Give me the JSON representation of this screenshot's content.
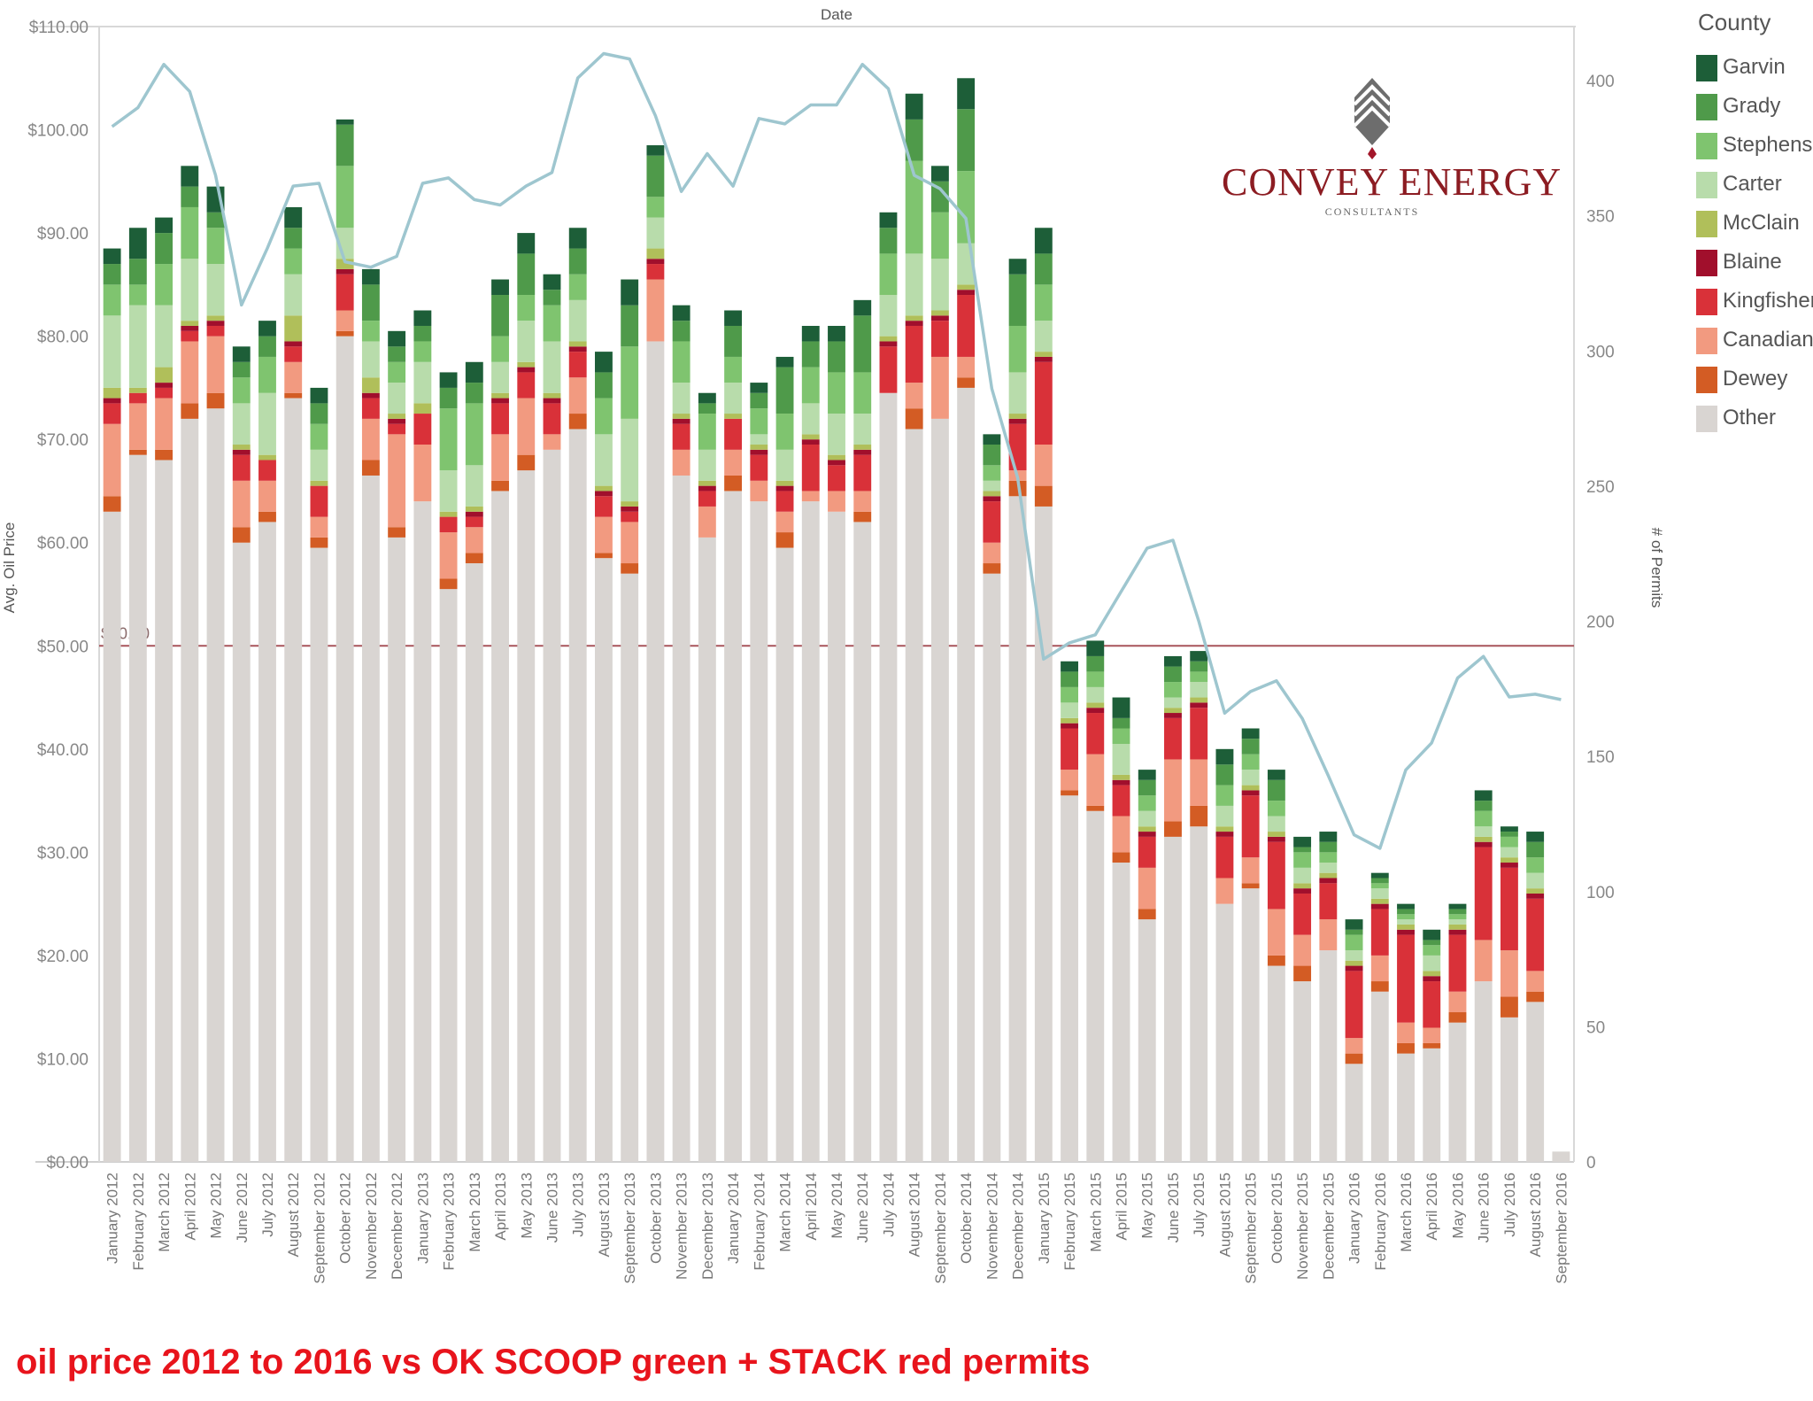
{
  "caption": "oil price 2012 to 2016 vs OK SCOOP green + STACK red permits",
  "logo": {
    "name": "CONVEY ENERGY",
    "sub": "CONSULTANTS"
  },
  "chart_data": {
    "type": "bar",
    "title": "",
    "top_axis_title": "Date",
    "ylabel_left": "Avg. Oil Price",
    "ylabel_right": "# of Permits",
    "ylim_left": [
      0,
      110
    ],
    "ylim_right": [
      0,
      420
    ],
    "left_ticks": [
      "$0.00",
      "$10.00",
      "$20.00",
      "$30.00",
      "$40.00",
      "$50.00",
      "$60.00",
      "$70.00",
      "$80.00",
      "$90.00",
      "$100.00",
      "$110.00"
    ],
    "right_ticks": [
      0,
      50,
      100,
      150,
      200,
      250,
      300,
      350,
      400
    ],
    "reference_line": {
      "value": 50,
      "label": "$50.00"
    },
    "legend_title": "County",
    "legend": [
      {
        "name": "Garvin",
        "color": "#1d5e38"
      },
      {
        "name": "Grady",
        "color": "#4f9a4a"
      },
      {
        "name": "Stephens",
        "color": "#7fc46f"
      },
      {
        "name": "Carter",
        "color": "#b8dcab"
      },
      {
        "name": "McClain",
        "color": "#b0bf5a"
      },
      {
        "name": "Blaine",
        "color": "#a10f2c"
      },
      {
        "name": "Kingfisher",
        "color": "#d93139"
      },
      {
        "name": "Canadian",
        "color": "#f29a80"
      },
      {
        "name": "Dewey",
        "color": "#d35c24"
      },
      {
        "name": "Other",
        "color": "#d9d5d2"
      }
    ],
    "categories": [
      "January 2012",
      "February 2012",
      "March 2012",
      "April 2012",
      "May 2012",
      "June 2012",
      "July 2012",
      "August 2012",
      "September 2012",
      "October 2012",
      "November 2012",
      "December 2012",
      "January 2013",
      "February 2013",
      "March 2013",
      "April 2013",
      "May 2013",
      "June 2013",
      "July 2013",
      "August 2013",
      "September 2013",
      "October 2013",
      "November 2013",
      "December 2013",
      "January 2014",
      "February 2014",
      "March 2014",
      "April 2014",
      "May 2014",
      "June 2014",
      "July 2014",
      "August 2014",
      "September 2014",
      "October 2014",
      "November 2014",
      "December 2014",
      "January 2015",
      "February 2015",
      "March 2015",
      "April 2015",
      "May 2015",
      "June 2015",
      "July 2015",
      "August 2015",
      "September 2015",
      "October 2015",
      "November 2015",
      "December 2015",
      "January 2016",
      "February 2016",
      "March 2016",
      "April 2016",
      "May 2016",
      "June 2016",
      "July 2016",
      "August 2016",
      "September 2016"
    ],
    "oil_price": [
      88,
      89.5,
      92.5,
      97,
      93.5,
      80.5,
      82.5,
      92.5,
      75.5,
      102,
      88.5,
      80.5,
      82.5,
      76.5,
      77.5,
      86,
      90.5,
      86.5,
      90.5,
      79,
      85.5,
      100.5,
      83.5,
      77.5,
      83.5,
      75.5,
      78.5,
      82,
      82,
      84.5,
      93.5,
      107.5,
      97.5,
      105.5,
      71.5,
      89,
      91.5,
      49,
      50.5,
      44.5,
      38.5,
      49,
      54.5,
      41,
      42,
      38.5,
      32,
      31.5,
      24,
      27,
      25,
      22.5,
      25,
      36,
      32,
      34.5,
      1
    ],
    "series": [
      {
        "name": "Other",
        "values": [
          63,
          68.5,
          68,
          72,
          73,
          60,
          62,
          74,
          59.5,
          80,
          66.5,
          60.5,
          64,
          55.5,
          58,
          65,
          67,
          69,
          71,
          58.5,
          57,
          79.5,
          66.5,
          60.5,
          65,
          64,
          59.5,
          64,
          63,
          62,
          74.5,
          71,
          72,
          75,
          57,
          64.5,
          63.5,
          35.5,
          34,
          29,
          23.5,
          31.5,
          32.5,
          25,
          26.5,
          19,
          17.5,
          20.5,
          9.5,
          16.5,
          10.5,
          11,
          13.5,
          17.5,
          14,
          15.5,
          1
        ]
      },
      {
        "name": "Dewey",
        "values": [
          1.5,
          0.5,
          1,
          1.5,
          1.5,
          1.5,
          1,
          0.5,
          1,
          0.5,
          1.5,
          1,
          0,
          1,
          1,
          1,
          1.5,
          0,
          1.5,
          0.5,
          1,
          0,
          0,
          0,
          1.5,
          0,
          1.5,
          0,
          0,
          1,
          0,
          2,
          0,
          1,
          1,
          1.5,
          2,
          0.5,
          0.5,
          1,
          1,
          1.5,
          2,
          0,
          0.5,
          1,
          1.5,
          0,
          1,
          1,
          1,
          0.5,
          1,
          0,
          2,
          1,
          0
        ]
      },
      {
        "name": "Canadian",
        "values": [
          7,
          4.5,
          5,
          6,
          5.5,
          4.5,
          3,
          3,
          2,
          2,
          4,
          9,
          5.5,
          4.5,
          2.5,
          4.5,
          5.5,
          1.5,
          3.5,
          3.5,
          4,
          6,
          2.5,
          3,
          2.5,
          2,
          2,
          1,
          2,
          2,
          0,
          2.5,
          6,
          2,
          2,
          1,
          4,
          2,
          5,
          3.5,
          4,
          6,
          4.5,
          2.5,
          2.5,
          4.5,
          3,
          3,
          1.5,
          2.5,
          2,
          1.5,
          2,
          4,
          4.5,
          2,
          0
        ]
      },
      {
        "name": "Kingfisher",
        "values": [
          2,
          1,
          1,
          1,
          1,
          2.5,
          2,
          1.5,
          3,
          3.5,
          2,
          1,
          3,
          1.5,
          1,
          3,
          2.5,
          3,
          2.5,
          2,
          1,
          1.5,
          2.5,
          1.5,
          3,
          2.5,
          2,
          4.5,
          2.5,
          3.5,
          4.5,
          5.5,
          3.5,
          6,
          4,
          4.5,
          8,
          4,
          4,
          3,
          3,
          4,
          5,
          4,
          6,
          6.5,
          4,
          3.5,
          6.5,
          4.5,
          8.5,
          4.5,
          5.5,
          9,
          8,
          7,
          0
        ]
      },
      {
        "name": "Blaine",
        "values": [
          0.5,
          0,
          0.5,
          0.5,
          0.5,
          0.5,
          0,
          0.5,
          0,
          0.5,
          0.5,
          0.5,
          0,
          0,
          0.5,
          0.5,
          0.5,
          0.5,
          0.5,
          0.5,
          0.5,
          0.5,
          0.5,
          0.5,
          0,
          0.5,
          0.5,
          0.5,
          0.5,
          0.5,
          0.5,
          0.5,
          0.5,
          0.5,
          0.5,
          0.5,
          0.5,
          0.5,
          0.5,
          0.5,
          0.5,
          0.5,
          0.5,
          0.5,
          0.5,
          0.5,
          0.5,
          0.5,
          0.5,
          0.5,
          0.5,
          0.5,
          0.5,
          0.5,
          0.5,
          0.5,
          0
        ]
      },
      {
        "name": "McClain",
        "values": [
          1,
          0.5,
          1.5,
          0.5,
          0.5,
          0.5,
          0.5,
          2.5,
          0.5,
          1,
          1.5,
          0.5,
          1,
          0.5,
          0.5,
          0.5,
          0.5,
          0.5,
          0.5,
          0.5,
          0.5,
          1,
          0.5,
          0.5,
          0.5,
          0.5,
          0.5,
          0.5,
          0.5,
          0.5,
          0.5,
          0.5,
          0.5,
          0.5,
          0.5,
          0.5,
          0.5,
          0.5,
          0.5,
          0.5,
          0.5,
          0.5,
          0.5,
          0.5,
          0.5,
          0.5,
          0.5,
          0.5,
          0.5,
          0.5,
          0.5,
          0.5,
          0.5,
          0.5,
          0.5,
          0.5,
          0
        ]
      },
      {
        "name": "Carter",
        "values": [
          7,
          8,
          6,
          6,
          5,
          4,
          6,
          4,
          3,
          3,
          3.5,
          3,
          4,
          4,
          4,
          3,
          4,
          5,
          4,
          5,
          8,
          3,
          3,
          3,
          3,
          1,
          3,
          3,
          4,
          3,
          4,
          6,
          5,
          4,
          1,
          4,
          3,
          1.5,
          1.5,
          3,
          1.5,
          1,
          1.5,
          2,
          1.5,
          1.5,
          1.5,
          1,
          1,
          1,
          0.5,
          1.5,
          0.5,
          1,
          1,
          1.5,
          0
        ]
      },
      {
        "name": "Stephens",
        "values": [
          3,
          2,
          4,
          5,
          3.5,
          2.5,
          3.5,
          2.5,
          2.5,
          6,
          2,
          2,
          2,
          6,
          6,
          2.5,
          2.5,
          3.5,
          2.5,
          3.5,
          7,
          2,
          4,
          3.5,
          2.5,
          2.5,
          3.5,
          3.5,
          4,
          4,
          4,
          9,
          4.5,
          7,
          1.5,
          4.5,
          3.5,
          1.5,
          1.5,
          1.5,
          1.5,
          1.5,
          1,
          2,
          1.5,
          1.5,
          1.5,
          1,
          1.5,
          0.5,
          0.5,
          1,
          0.5,
          1.5,
          1,
          1.5,
          0
        ]
      },
      {
        "name": "Grady",
        "values": [
          2,
          2.5,
          3,
          2,
          1.5,
          1.5,
          2,
          2,
          2,
          4,
          3.5,
          1.5,
          1.5,
          2,
          2,
          4,
          4,
          1.5,
          2.5,
          2.5,
          4,
          4,
          2,
          1,
          3,
          1.5,
          4.5,
          2.5,
          3,
          5.5,
          2.5,
          4,
          3,
          6,
          2,
          5,
          3,
          1.5,
          1.5,
          1,
          1.5,
          1.5,
          1,
          2,
          1.5,
          2,
          0.5,
          1,
          0.5,
          0.5,
          0.5,
          0.5,
          0.5,
          1,
          0.5,
          1.5,
          0
        ]
      },
      {
        "name": "Garvin",
        "values": [
          1.5,
          3,
          1.5,
          2,
          2.5,
          1.5,
          1.5,
          2,
          1.5,
          0.5,
          1.5,
          1.5,
          1.5,
          1.5,
          2,
          1.5,
          2,
          1.5,
          2,
          2,
          2.5,
          1,
          1.5,
          1,
          1.5,
          1,
          1,
          1.5,
          1.5,
          1.5,
          1.5,
          2.5,
          1.5,
          3,
          1,
          1.5,
          2.5,
          1,
          1.5,
          2,
          1,
          1,
          1,
          1.5,
          1,
          1,
          1,
          1,
          1,
          0.5,
          0.5,
          1,
          0.5,
          1,
          0.5,
          1,
          0
        ]
      }
    ],
    "permits_line": {
      "color": "#9ec6cf",
      "values": [
        383,
        390,
        406,
        396,
        365,
        317,
        338,
        361,
        362,
        333,
        331,
        335,
        362,
        364,
        356,
        354,
        361,
        366,
        401,
        410,
        408,
        387,
        359,
        373,
        361,
        386,
        384,
        391,
        391,
        406,
        397,
        365,
        360,
        349,
        286,
        253,
        186,
        192,
        195,
        211,
        227,
        230,
        200,
        166,
        174,
        178,
        164,
        143,
        121,
        116,
        145,
        155,
        179,
        187,
        172,
        173,
        171
      ]
    },
    "grid": false,
    "legend_position": "right"
  }
}
